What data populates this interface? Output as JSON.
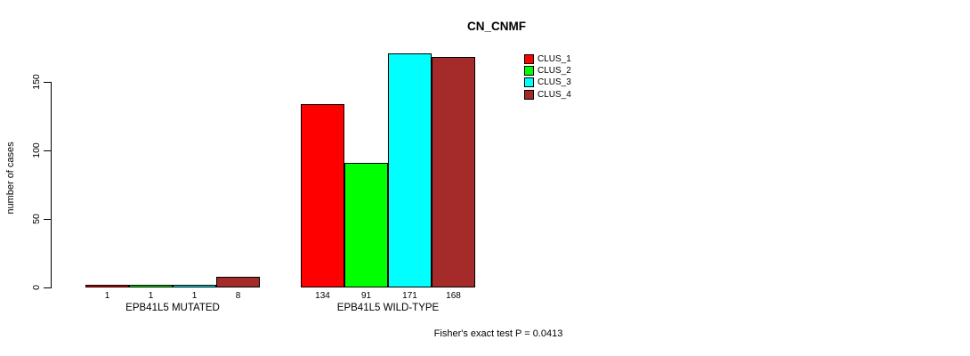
{
  "chart_data": {
    "type": "bar",
    "title": "CN_CNMF",
    "xlabel": "",
    "ylabel": "number of cases",
    "groups": [
      "EPB41L5 MUTATED",
      "EPB41L5 WILD-TYPE"
    ],
    "series": [
      {
        "name": "CLUS_1",
        "color": "#FF0000",
        "values": [
          1,
          134
        ]
      },
      {
        "name": "CLUS_2",
        "color": "#00FF00",
        "values": [
          1,
          91
        ]
      },
      {
        "name": "CLUS_3",
        "color": "#00FFFF",
        "values": [
          1,
          171
        ]
      },
      {
        "name": "CLUS_4",
        "color": "#A52A2A",
        "values": [
          8,
          168
        ]
      }
    ],
    "bar_value_labels": [
      [
        "1",
        "1",
        "1",
        "8"
      ],
      [
        "134",
        "91",
        "171",
        "168"
      ]
    ],
    "yticks": [
      0,
      50,
      100,
      150
    ],
    "ylim": [
      0,
      175
    ],
    "grid": false,
    "legend_position": "top-right",
    "annotation": "Fisher's exact test P = 0.0413"
  }
}
